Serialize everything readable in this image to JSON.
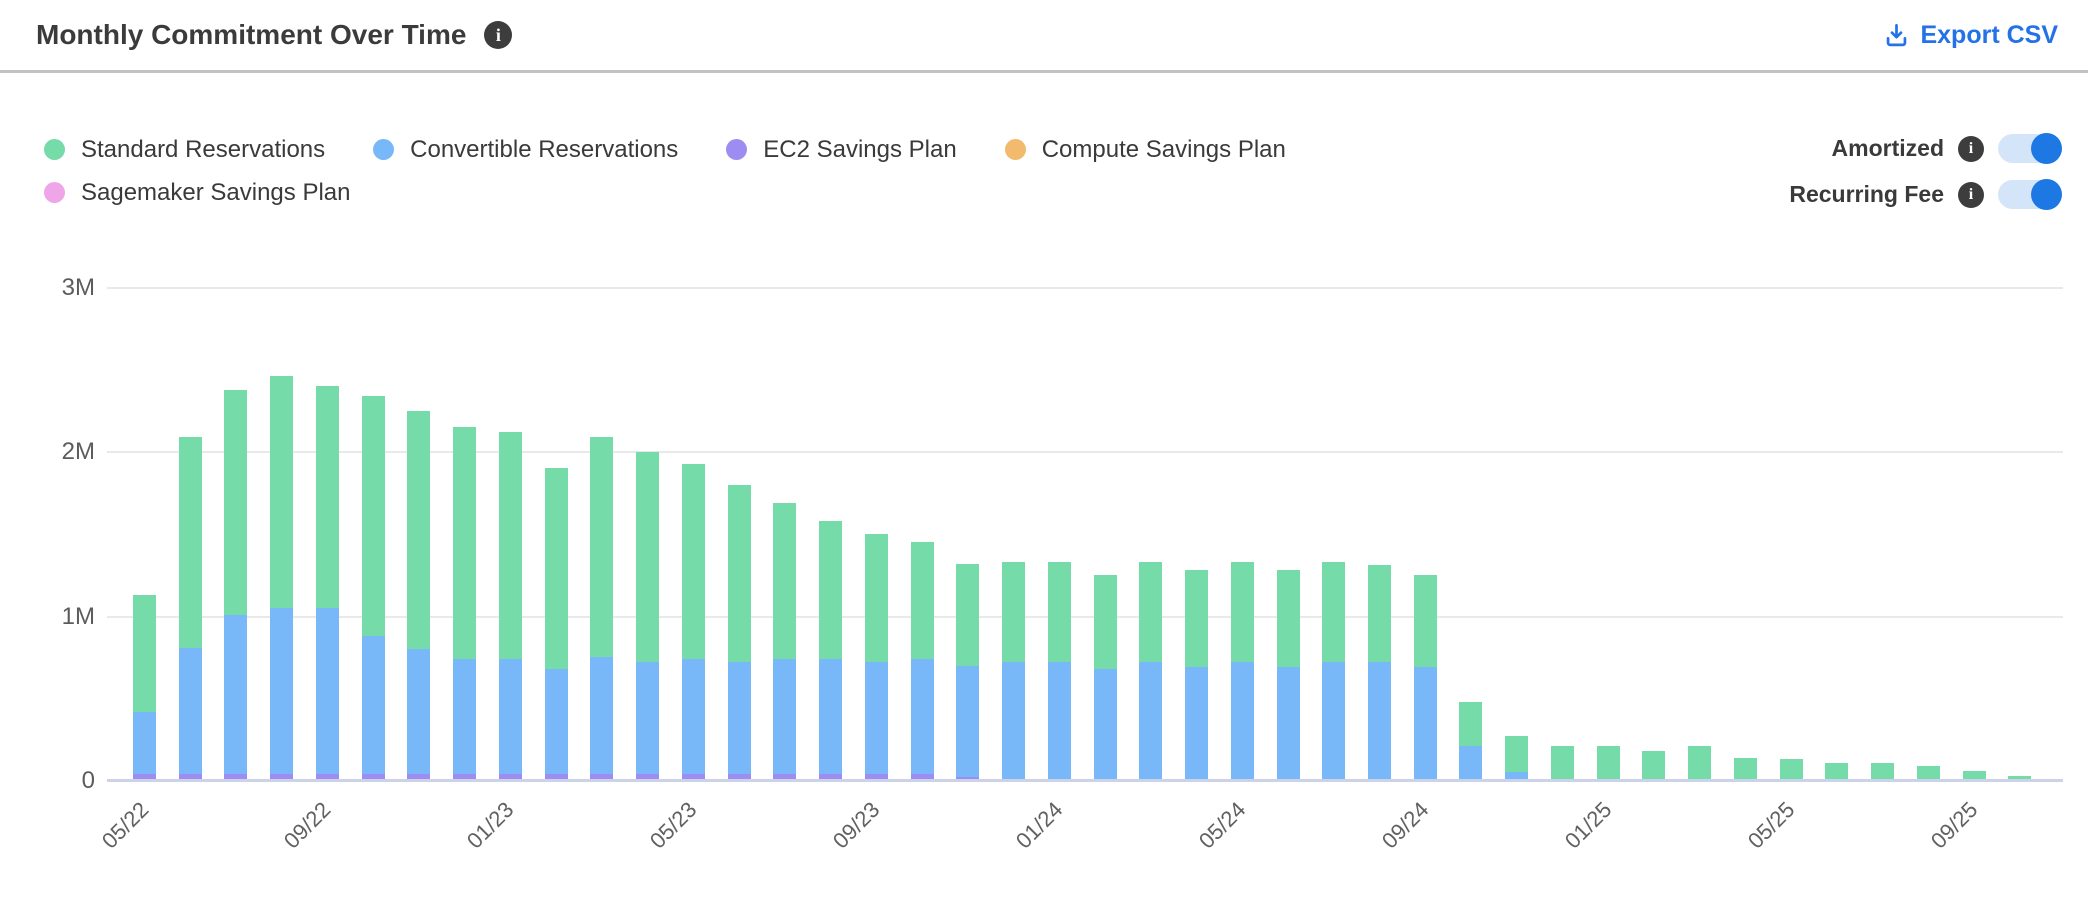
{
  "header": {
    "title": "Monthly Commitment Over Time",
    "export_label": "Export CSV"
  },
  "icons": {
    "info_glyph": "i"
  },
  "colors": {
    "accent_blue": "#2372e8",
    "toggle_track": "#d5e5f9",
    "toggle_knob": "#1e78e3",
    "gridline": "#e9e9e9",
    "axis_line": "#ccd3e8",
    "standard": "#74dba9",
    "convertible": "#78b8f9",
    "ec2_sp": "#9d8df2",
    "compute_sp": "#f2ba6c",
    "sagemaker_sp": "#efa6e9"
  },
  "legend": [
    {
      "label": "Standard Reservations",
      "color": "#74dba9"
    },
    {
      "label": "Convertible Reservations",
      "color": "#78b8f9"
    },
    {
      "label": "EC2 Savings Plan",
      "color": "#9d8df2"
    },
    {
      "label": "Compute Savings Plan",
      "color": "#f2ba6c"
    },
    {
      "label": "Sagemaker Savings Plan",
      "color": "#efa6e9"
    }
  ],
  "toggles": [
    {
      "label": "Amortized",
      "state": "on"
    },
    {
      "label": "Recurring Fee",
      "state": "on"
    }
  ],
  "chart_data": {
    "type": "bar",
    "stacked": true,
    "title": "Monthly Commitment Over Time",
    "xlabel": "",
    "ylabel": "",
    "value_unit": "millions",
    "ylim": [
      0,
      3
    ],
    "grid": true,
    "legend_position": "top-left",
    "x_tick_every": 4,
    "y_ticks": [
      {
        "label": "3M",
        "value": 3
      },
      {
        "label": "2M",
        "value": 2
      },
      {
        "label": "1M",
        "value": 1
      },
      {
        "label": "0",
        "value": 0
      }
    ],
    "categories": [
      "05/22",
      "06/22",
      "07/22",
      "08/22",
      "09/22",
      "10/22",
      "11/22",
      "12/22",
      "01/23",
      "02/23",
      "03/23",
      "04/23",
      "05/23",
      "06/23",
      "07/23",
      "08/23",
      "09/23",
      "10/23",
      "11/23",
      "12/23",
      "01/24",
      "02/24",
      "03/24",
      "04/24",
      "05/24",
      "06/24",
      "07/24",
      "08/24",
      "09/24",
      "10/24",
      "11/24",
      "12/24",
      "01/25",
      "02/25",
      "03/25",
      "04/25",
      "05/25",
      "06/25",
      "07/25",
      "08/25",
      "09/25",
      "10/25"
    ],
    "series": [
      {
        "name": "Standard Reservations",
        "color": "#74dba9",
        "values": [
          0.71,
          1.28,
          1.37,
          1.41,
          1.35,
          1.46,
          1.45,
          1.41,
          1.38,
          1.22,
          1.34,
          1.28,
          1.19,
          1.08,
          0.95,
          0.84,
          0.78,
          0.71,
          0.62,
          0.61,
          0.61,
          0.57,
          0.61,
          0.59,
          0.61,
          0.59,
          0.61,
          0.59,
          0.56,
          0.27,
          0.22,
          0.2,
          0.2,
          0.17,
          0.2,
          0.13,
          0.12,
          0.1,
          0.1,
          0.08,
          0.05,
          0.02
        ]
      },
      {
        "name": "Convertible Reservations",
        "color": "#78b8f9",
        "values": [
          0.38,
          0.77,
          0.97,
          1.01,
          1.01,
          0.84,
          0.76,
          0.7,
          0.7,
          0.64,
          0.71,
          0.68,
          0.7,
          0.68,
          0.7,
          0.7,
          0.68,
          0.7,
          0.68,
          0.71,
          0.71,
          0.67,
          0.71,
          0.68,
          0.71,
          0.68,
          0.71,
          0.71,
          0.68,
          0.2,
          0.04,
          0,
          0,
          0,
          0,
          0,
          0,
          0,
          0,
          0,
          0,
          0
        ]
      },
      {
        "name": "EC2 Savings Plan",
        "color": "#9d8df2",
        "values": [
          0.03,
          0.03,
          0.03,
          0.03,
          0.03,
          0.03,
          0.03,
          0.03,
          0.03,
          0.03,
          0.03,
          0.03,
          0.03,
          0.03,
          0.03,
          0.03,
          0.03,
          0.03,
          0.01,
          0,
          0,
          0,
          0,
          0,
          0,
          0,
          0,
          0,
          0,
          0,
          0,
          0,
          0,
          0,
          0,
          0,
          0,
          0,
          0,
          0,
          0,
          0
        ]
      },
      {
        "name": "Compute Savings Plan",
        "color": "#f2ba6c",
        "values": [
          0,
          0,
          0,
          0,
          0,
          0,
          0,
          0,
          0,
          0,
          0,
          0,
          0,
          0,
          0,
          0,
          0,
          0,
          0,
          0,
          0,
          0,
          0,
          0,
          0,
          0,
          0,
          0,
          0,
          0,
          0,
          0,
          0,
          0,
          0,
          0,
          0,
          0,
          0,
          0,
          0,
          0
        ]
      },
      {
        "name": "Sagemaker Savings Plan",
        "color": "#efa6e9",
        "values": [
          0,
          0,
          0,
          0,
          0,
          0,
          0,
          0,
          0,
          0,
          0,
          0,
          0,
          0,
          0,
          0,
          0,
          0,
          0,
          0,
          0,
          0,
          0,
          0,
          0,
          0,
          0,
          0,
          0,
          0,
          0,
          0,
          0,
          0,
          0,
          0,
          0,
          0,
          0,
          0,
          0,
          0
        ]
      }
    ]
  }
}
